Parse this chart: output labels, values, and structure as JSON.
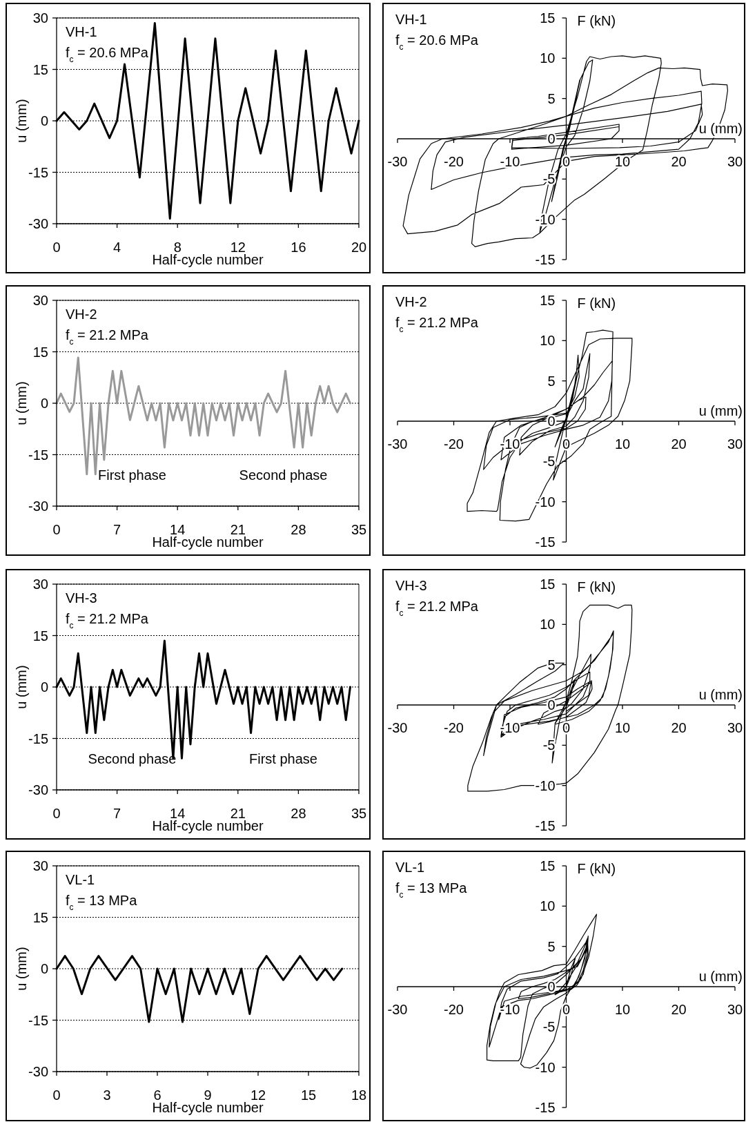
{
  "chart_data": [
    {
      "type": "line",
      "title": "VH-1",
      "subtitle": "f$_{c}$ = 20.6 MPa",
      "xlabel": "Half-cycle number",
      "ylabel": "u (mm)",
      "x": [
        0,
        0.5,
        1.5,
        2,
        2.5,
        3.5,
        4,
        4.5,
        5.5,
        6.5,
        7.5,
        8.5,
        9.5,
        10.5,
        11.5,
        12,
        12.5,
        13.5,
        14,
        14.5,
        15.5,
        16.5,
        17.5,
        18,
        18.5,
        19.5,
        20
      ],
      "series": [
        {
          "color": "#000000",
          "values": [
            0,
            2.5,
            -2.5,
            0,
            5,
            -5,
            0,
            16.5,
            -16.5,
            28.5,
            -28.5,
            24,
            -24,
            24,
            -24,
            0,
            9.5,
            -9.5,
            0,
            20.5,
            -20.5,
            20.5,
            -20.5,
            0,
            9.5,
            -9.5,
            0
          ]
        }
      ],
      "xlim": [
        0,
        20
      ],
      "xticks": [
        0,
        4,
        8,
        12,
        16,
        20
      ],
      "ylim": [
        -30,
        30
      ],
      "yticks": [
        -30,
        -15,
        0,
        15,
        30
      ],
      "grid": "y"
    },
    {
      "type": "line",
      "title": "VH-1",
      "subtitle": "f$_{c}$ = 20.6 MPa",
      "xlabel": "u (mm)",
      "ylabel": "F (kN)",
      "series": [
        {
          "color": "#000000",
          "x": [
            0,
            1.2,
            2.4,
            1.6,
            0.5,
            -0.5,
            -1.5,
            -2.6,
            -1.8,
            -0.6,
            0.5,
            2.5,
            4,
            4.7,
            4.2,
            3,
            1.5,
            0,
            -2,
            -3.5,
            -4.7,
            -4.3,
            -3,
            -1.5,
            0,
            2,
            3.6,
            4.2,
            6,
            8,
            10,
            12,
            14,
            16.8,
            16.9,
            16.5,
            15.3,
            14.4,
            13.6,
            11.1,
            6.9,
            3.2,
            1.5,
            -2,
            -4.7,
            -6,
            -9,
            -12,
            -14,
            -16.2,
            -16.8,
            -16.4,
            -15.6,
            -14.4,
            -13,
            -12,
            -8,
            -4,
            0,
            4,
            8,
            12,
            14.5,
            16.5,
            19,
            21,
            23.8,
            23.9,
            24.2,
            26,
            28.6,
            28.7,
            28.2,
            26.9,
            26,
            25.2,
            21,
            15,
            10,
            5,
            0,
            -4,
            -8,
            -11.8,
            -16.8,
            -19.3,
            -23.4,
            -28.2,
            -29,
            -28,
            -26,
            -24,
            -22,
            -15,
            -8,
            -3,
            0,
            5,
            10,
            15,
            20,
            24,
            24.1,
            23.5,
            22,
            20,
            15,
            10,
            5,
            0,
            -5,
            -10,
            -15,
            -20,
            -24,
            -23.7,
            -23,
            -21.5,
            -18,
            -10,
            0,
            10,
            18,
            24,
            24.2,
            23,
            20,
            15,
            9.5,
            0,
            -9.7,
            -9.5,
            -5,
            0,
            9.4,
            9.4,
            8,
            0,
            -9.7,
            -9.5,
            0,
            9.4
          ],
          "values": [
            0,
            3.6,
            7.3,
            4.4,
            1,
            -1.4,
            -4.6,
            -7.8,
            -5,
            -1.3,
            1.3,
            7.4,
            9.5,
            9.8,
            7.2,
            3.6,
            0.4,
            -1,
            -5.2,
            -9,
            -11.6,
            -9.4,
            -5,
            -1.4,
            0.6,
            5.2,
            9.6,
            10.2,
            9.9,
            10.2,
            10.3,
            10.1,
            10.3,
            10,
            9.4,
            7.6,
            4.2,
            1,
            -1.4,
            -2.5,
            -4.9,
            -6.9,
            -7.6,
            -9.8,
            -11.7,
            -12.3,
            -12.4,
            -12.8,
            -13,
            -13.4,
            -13,
            -10.2,
            -6.5,
            -2.6,
            -0.6,
            0,
            0.9,
            1.8,
            2.8,
            4.2,
            5.5,
            7.2,
            8.2,
            8.8,
            8.7,
            8.8,
            8.6,
            7.5,
            6.6,
            6.8,
            6.7,
            6,
            3.6,
            1,
            -0.2,
            -1.1,
            -1.5,
            -1.8,
            -2,
            -2.2,
            -2.8,
            -5.7,
            -6,
            -8,
            -9.4,
            -10.7,
            -11.5,
            -11.8,
            -10.8,
            -7,
            -2.5,
            -0.6,
            0,
            0.6,
            1.4,
            2.2,
            2.8,
            3.8,
            4.5,
            5,
            5.4,
            5.9,
            4.4,
            2,
            0,
            -1.3,
            -1.6,
            -1.9,
            -2,
            -2.3,
            -2.9,
            -3.5,
            -4.2,
            -5.1,
            -6.3,
            -4,
            -2,
            -0.4,
            0.2,
            0.9,
            1.7,
            2.6,
            3.4,
            4.3,
            3,
            1,
            -0.4,
            -0.9,
            -1.1,
            -1.2,
            -1.1,
            0,
            0.3,
            0.8,
            1.8,
            1,
            0,
            -0.8,
            -1.3,
            -0.2,
            0.5,
            1.5
          ]
        }
      ],
      "xlim": [
        -30,
        30
      ],
      "xticks": [
        -30,
        -20,
        -10,
        0,
        10,
        20,
        30
      ],
      "ylim": [
        -15,
        15
      ],
      "yticks": [
        -15,
        -10,
        -5,
        0,
        5,
        10,
        15
      ]
    },
    {
      "type": "line",
      "title": "VH-2",
      "subtitle": "f$_{c}$ = 21.2 MPa",
      "xlabel": "Half-cycle number",
      "ylabel": "u (mm)",
      "annotations": [
        "First phase",
        "Second phase"
      ],
      "x": [
        0,
        0.5,
        1.5,
        2,
        2.5,
        3.5,
        4,
        4.5,
        5,
        5.5,
        6,
        6.5,
        7,
        7.5,
        8.5,
        9.5,
        10.5,
        11,
        11.5,
        12,
        12.5,
        13,
        13.5,
        14,
        14.5,
        15,
        15.5,
        16,
        16.5,
        17,
        17.5,
        18,
        18.5,
        19,
        19.5,
        20,
        20.5,
        21,
        21.5,
        22,
        22.5,
        23,
        23.5,
        24,
        24.5,
        25.5,
        26,
        26.5,
        27.5,
        28,
        28.5,
        29,
        29.5,
        30,
        30.5,
        31,
        31.5,
        32,
        32.5,
        33.5,
        34
      ],
      "series": [
        {
          "color": "#999999",
          "values": [
            0,
            2.8,
            -2.5,
            0,
            13.3,
            -20.7,
            0,
            -20.7,
            0,
            -16.5,
            0,
            9.4,
            0,
            9.4,
            -4.9,
            5,
            -5,
            0,
            -5,
            0,
            -12.9,
            0,
            -5,
            0,
            -5,
            0,
            -9.4,
            0,
            -9.4,
            0,
            -9.4,
            0,
            -5,
            0,
            -5,
            0,
            -9.4,
            0,
            -5,
            0,
            -5,
            0,
            -9.4,
            0,
            2.8,
            -2.6,
            0,
            9.4,
            -12.9,
            0,
            -12.9,
            0,
            -9.4,
            0,
            5,
            0,
            5,
            0,
            -2.6,
            2.8,
            0
          ]
        }
      ],
      "xlim": [
        0,
        35
      ],
      "xticks": [
        0,
        7,
        14,
        21,
        28,
        35
      ],
      "ylim": [
        -30,
        30
      ],
      "yticks": [
        -30,
        -15,
        0,
        15,
        30
      ],
      "grid": "y"
    },
    {
      "type": "line",
      "title": "VH-2",
      "subtitle": "f$_{c}$ = 21.2 MPa",
      "xlabel": "u (mm)",
      "ylabel": "F (kN)",
      "series": [
        {
          "color": "#000000",
          "x": [
            0,
            1,
            2,
            1,
            0,
            -1,
            -2,
            -1,
            0,
            1.5,
            2.8,
            3.6,
            5,
            6.5,
            8.3,
            8.2,
            8.1,
            8,
            6,
            4.2,
            3,
            0.9,
            -1.5,
            -3.5,
            -5.2,
            -6.6,
            -9,
            -11.8,
            -11.7,
            -10.8,
            -9.8,
            -8.3,
            -6,
            -3,
            0,
            1.5,
            2.3,
            2.1,
            1.8,
            1.2,
            0,
            -3,
            -6,
            -8,
            -10,
            -11.4,
            -12.2,
            -12.4,
            -15,
            -17.6,
            -17.6,
            -16.6,
            -14.9,
            -13.7,
            -12.4,
            -9,
            -5,
            -2,
            0,
            2,
            4,
            6,
            9,
            11.7,
            11.7,
            11.3,
            10.4,
            9.2,
            7.5,
            5,
            2,
            0,
            -2.3,
            -1.8,
            -1,
            0,
            1.5,
            3,
            4.2,
            4,
            3,
            1.5,
            0,
            -3,
            -6,
            -8.3,
            -8,
            -6,
            -3,
            0,
            3,
            5,
            6.5,
            8.2,
            8.1,
            7.5,
            6,
            3,
            0,
            -4,
            -8,
            -11.6,
            -11,
            -8,
            -4,
            0,
            2,
            3.5,
            3.4,
            2,
            0,
            -5,
            -10,
            -13,
            -14.7,
            -14.2,
            -13,
            -10,
            -5,
            0
          ],
          "values": [
            0,
            2.8,
            5.8,
            2.5,
            0.2,
            -1.5,
            -3.2,
            -1.2,
            0.4,
            4.5,
            8,
            11,
            11.1,
            11.3,
            11.1,
            8,
            4,
            0.6,
            -0.2,
            -1,
            -2.8,
            -4.3,
            -5.5,
            -7.8,
            -10.2,
            -12.2,
            -12.4,
            -12.3,
            -10,
            -6,
            -3,
            -0.8,
            0,
            0.4,
            0.9,
            3,
            5.5,
            8.2,
            6,
            3,
            0,
            -0.8,
            -1.5,
            -2.4,
            -4.5,
            -7.5,
            -11,
            -11.2,
            -11.1,
            -11.2,
            -10.2,
            -8.9,
            -4.6,
            -1.4,
            0,
            0.4,
            0.8,
            1.8,
            3.5,
            6.5,
            9.5,
            10.2,
            10.3,
            10.3,
            9.7,
            5,
            2.6,
            0.6,
            -0.5,
            -1.5,
            -2.5,
            -3.2,
            -7.3,
            -5,
            -2.5,
            0.5,
            2.5,
            4,
            8.4,
            5.5,
            2.5,
            0.5,
            -0.6,
            -1.2,
            -2.5,
            -4.2,
            -2,
            -0.5,
            0.5,
            1.5,
            3,
            4.5,
            6,
            7.5,
            5,
            2.5,
            0.5,
            -0.5,
            -1,
            -1.8,
            -2.8,
            -4.8,
            -2,
            -0.5,
            0.4,
            1.5,
            2.5,
            3,
            1.5,
            0,
            -0.9,
            -1.6,
            -2.8,
            -4.5,
            -6,
            -3,
            -0.8,
            0.2,
            0.5,
            1
          ]
        }
      ],
      "xlim": [
        -30,
        30
      ],
      "xticks": [
        -30,
        -20,
        -10,
        0,
        10,
        20,
        30
      ],
      "ylim": [
        -15,
        15
      ],
      "yticks": [
        -15,
        -10,
        -5,
        0,
        5,
        10,
        15
      ]
    },
    {
      "type": "line",
      "title": "VH-3",
      "subtitle": "f$_{c}$ = 21.2 MPa",
      "xlabel": "Half-cycle number",
      "ylabel": "u (mm)",
      "annotations": [
        "Second phase",
        "First phase"
      ],
      "x": [
        0,
        0.5,
        1.5,
        2,
        2.5,
        3.5,
        4,
        4.5,
        5,
        5.5,
        6,
        6.5,
        7,
        7.5,
        8.5,
        9.5,
        10,
        10.5,
        11.5,
        12,
        12.5,
        13.5,
        14,
        14.5,
        15,
        15.5,
        16,
        16.5,
        17,
        17.5,
        18.5,
        19.5,
        20.5,
        21,
        21.5,
        22,
        22.5,
        23,
        23.5,
        24,
        24.5,
        25,
        25.5,
        26,
        26.5,
        27,
        27.5,
        28,
        28.5,
        29,
        29.5,
        30,
        30.5,
        31,
        31.5,
        32,
        32.5,
        33,
        33.5,
        34
      ],
      "series": [
        {
          "color": "#000000",
          "values": [
            0,
            2.5,
            -2.5,
            0,
            9.8,
            -13.4,
            0,
            -13.4,
            0,
            -9.6,
            0,
            5,
            0,
            5,
            -2.5,
            2.5,
            0,
            2.5,
            -2.5,
            0,
            13.5,
            -20.8,
            0,
            -20.8,
            0,
            -16.7,
            0,
            9.8,
            0,
            9.8,
            -4.9,
            5,
            -4.9,
            0,
            -4.9,
            0,
            -13.4,
            0,
            -4.9,
            0,
            -4.9,
            0,
            -9.6,
            0,
            -9.6,
            0,
            -9.6,
            0,
            -4.9,
            0,
            -4.9,
            0,
            -9.6,
            0,
            -4.9,
            0,
            -4.9,
            0,
            -9.6,
            0
          ]
        }
      ],
      "xlim": [
        0,
        35
      ],
      "xticks": [
        0,
        7,
        14,
        21,
        28,
        35
      ],
      "ylim": [
        -30,
        30
      ],
      "yticks": [
        -30,
        -15,
        0,
        15,
        30
      ],
      "grid": "y"
    },
    {
      "type": "line",
      "title": "VH-3",
      "subtitle": "f$_{c}$ = 21.2 MPa",
      "xlabel": "u (mm)",
      "ylabel": "F (kN)",
      "series": [
        {
          "color": "#000000",
          "x": [
            0,
            0.8,
            1.6,
            0.8,
            0,
            -1,
            -2,
            -1,
            0,
            1.5,
            3,
            4.4,
            4.3,
            3,
            1,
            0,
            -2,
            -4,
            -6,
            -8,
            -10,
            -11.6,
            -11.3,
            -10.5,
            -9,
            -6,
            -3,
            0,
            2,
            4.2,
            4.2,
            3,
            0,
            -4,
            -8,
            -11,
            -11.6,
            -11,
            -9,
            -5,
            -2,
            0,
            2,
            4,
            6,
            7.5,
            8.4,
            8.3,
            7.8,
            7,
            6,
            4,
            1,
            -2,
            -2.5,
            -2,
            -1.2,
            0,
            1,
            2,
            2.3,
            2.4,
            3,
            4.2,
            7.5,
            9.2,
            10.4,
            11.6,
            11.7,
            11.6,
            11.3,
            10,
            9.2,
            8.8,
            7.5,
            5,
            2.1,
            0,
            -1,
            -4,
            -8,
            -11,
            -14,
            -17.5,
            -17.5,
            -16.6,
            -14.9,
            -13.3,
            -12.4,
            -10.8,
            -8.3,
            -5,
            -2.5,
            -0.4,
            -2,
            -5,
            -9,
            -12.4,
            -13,
            -14,
            -14.7,
            -14.2,
            -13,
            -11,
            -6,
            0,
            3,
            5,
            6.5,
            8.3,
            8.4,
            8.2,
            7.5,
            6.5,
            5,
            2,
            -3,
            -8,
            -11.5,
            -11,
            -8,
            -4,
            0,
            2,
            4.5,
            4.6,
            3.5,
            0,
            -3,
            -5,
            -4,
            0,
            4.4,
            4,
            0
          ],
          "values": [
            0,
            1.8,
            3.2,
            1.2,
            -0.2,
            -1.3,
            -2.3,
            -1,
            0.4,
            2.5,
            4.5,
            6.3,
            4.8,
            2,
            0.2,
            -0.4,
            -0.8,
            -1.5,
            -2,
            -2.6,
            -3.2,
            -4,
            -2.5,
            -0.8,
            0,
            0.6,
            1.2,
            2.2,
            3.2,
            4.1,
            3,
            1,
            -1.1,
            -1.8,
            -2.3,
            -3.4,
            -3.8,
            -1.5,
            -0.4,
            0.3,
            1,
            2,
            3.5,
            4.8,
            6.5,
            7.8,
            9.2,
            7,
            4.5,
            2,
            0.5,
            -0.8,
            -1.8,
            -2.4,
            -7.2,
            -5,
            -2,
            0.5,
            3,
            6,
            8.5,
            10.4,
            11.6,
            12.4,
            12.4,
            12,
            12.4,
            12.4,
            11.8,
            9.5,
            6.3,
            2.3,
            0,
            -0.6,
            -3,
            -5.9,
            -8.5,
            -9.7,
            -9.8,
            -10,
            -10,
            -10.5,
            -10.7,
            -10.7,
            -10,
            -7.6,
            -4.7,
            -1.5,
            0,
            1.1,
            2.8,
            4.6,
            5.2,
            5.2,
            4.2,
            3,
            1.3,
            0,
            -1.5,
            -4,
            -6.3,
            -4,
            -1,
            0.5,
            1.8,
            3,
            4.2,
            5.5,
            7,
            8.8,
            9,
            6.5,
            3.5,
            1,
            0,
            -1.2,
            -2,
            -2.5,
            -3.8,
            -1.2,
            -0.3,
            0.3,
            1,
            2,
            3,
            2,
            0.3,
            -1.5,
            -2.1,
            -2.4,
            -1,
            0.5,
            2.8,
            1.2,
            -0.8
          ]
        }
      ],
      "xlim": [
        -30,
        30
      ],
      "xticks": [
        -30,
        -20,
        -10,
        0,
        10,
        20,
        30
      ],
      "ylim": [
        -15,
        15
      ],
      "yticks": [
        -15,
        -10,
        -5,
        0,
        5,
        10,
        15
      ]
    },
    {
      "type": "line",
      "title": "VL-1",
      "subtitle": "f$_{c}$ = 13 MPa",
      "xlabel": "Half-cycle number",
      "ylabel": "u (mm)",
      "x": [
        0,
        0.5,
        1,
        1.5,
        2,
        2.5,
        3.5,
        4.5,
        5,
        5.5,
        6,
        6.5,
        7,
        7.5,
        8,
        8.5,
        9,
        9.5,
        10,
        10.5,
        11,
        11.5,
        12,
        12.5,
        13.5,
        14.5,
        15.5,
        16,
        16.5,
        17
      ],
      "series": [
        {
          "color": "#000000",
          "values": [
            0,
            3.7,
            0,
            -7.4,
            0,
            3.7,
            -3.3,
            3.7,
            0,
            -15.5,
            0,
            -7.4,
            0,
            -15.5,
            0,
            -7.4,
            0,
            -7.4,
            0,
            -7.4,
            0,
            -13.2,
            0,
            3.7,
            -3.3,
            3.7,
            -3.3,
            0,
            -3.3,
            0
          ]
        }
      ],
      "xlim": [
        0,
        18
      ],
      "xticks": [
        0,
        3,
        6,
        9,
        12,
        15,
        18
      ],
      "ylim": [
        -30,
        30
      ],
      "yticks": [
        -30,
        -15,
        0,
        15,
        30
      ],
      "grid": "y"
    },
    {
      "type": "line",
      "title": "VL-1",
      "subtitle": "f$_{c}$ = 13 MPa",
      "xlabel": "u (mm)",
      "ylabel": "F (kN)",
      "series": [
        {
          "color": "#000000",
          "x": [
            0,
            0.8,
            1.6,
            0.8,
            0,
            -1,
            -2,
            -1,
            0,
            1.5,
            2.5,
            3.5,
            3.9,
            3.6,
            2.6,
            1.6,
            0,
            -2,
            -4,
            -6,
            -8.5,
            -8,
            -6,
            -4,
            -2,
            0,
            1.5,
            2.8,
            3.5,
            3.7,
            3.3,
            2.2,
            1,
            -2,
            -5,
            -8,
            -11,
            -12,
            -11.5,
            -10.5,
            -8,
            -4,
            -1.5,
            0,
            1.5,
            2.5,
            3.5,
            3.9,
            3.7,
            3,
            2,
            0,
            -2,
            -4,
            -5.5,
            -6.5,
            -7.6,
            -8.1,
            -7.5,
            -6.4,
            -5.2,
            -3.5,
            -2.2,
            -1.4,
            -1,
            0,
            0.7,
            1.9,
            2.7,
            4,
            4.8,
            5.4,
            4.5,
            3,
            1.5,
            0,
            -2.2,
            -4.3,
            -6.8,
            -8.5,
            -11,
            -11.8,
            -12.7,
            -13.5,
            -14.1,
            -14.1,
            -13,
            -10,
            -8.5,
            -8.1,
            -7.7,
            -6.8,
            -6,
            -4,
            -2,
            0,
            2,
            3.8,
            3.9,
            3,
            1,
            -3,
            -6,
            -8.5,
            -11.5,
            -13.7,
            -13.5,
            -12.5,
            -11,
            -8,
            -4,
            0,
            2,
            3.5
          ],
          "values": [
            0,
            2.2,
            3.5,
            1.3,
            0,
            -0.6,
            -1,
            -0.3,
            0.5,
            2.2,
            3.2,
            4.8,
            6.3,
            4.5,
            2,
            0.3,
            -0.4,
            -0.7,
            -1,
            -1.3,
            -1.5,
            -0.6,
            0,
            0.4,
            0.9,
            1.8,
            2.5,
            3.6,
            4.6,
            5.5,
            3.5,
            1.2,
            -0.2,
            -0.6,
            -0.9,
            -1.2,
            -1.8,
            -4.1,
            -2,
            -0.3,
            0.7,
            1.1,
            1.6,
            2.5,
            3.5,
            4.5,
            5.5,
            6.2,
            4,
            2,
            0.5,
            -0.8,
            -1.6,
            -2.5,
            -4,
            -6,
            -8.5,
            -9.6,
            -10,
            -10.1,
            -9.7,
            -8.2,
            -6.7,
            -4.7,
            -3,
            -1.2,
            -0.4,
            0.2,
            1.1,
            3.7,
            6.3,
            9,
            8,
            6.3,
            4.5,
            2.8,
            2.6,
            2,
            1.7,
            1.5,
            0.5,
            -0.6,
            -2.4,
            -4.7,
            -7.3,
            -9.1,
            -9.2,
            -9.2,
            -9.2,
            -8.8,
            -5.9,
            -2.4,
            -0.9,
            -0.2,
            0.3,
            1.5,
            3,
            5.8,
            4,
            1.5,
            -0.3,
            -1,
            -1.5,
            -1.7,
            -2.5,
            -7.5,
            -5,
            -2,
            0,
            0.9,
            1.3,
            2,
            2.5,
            4.5
          ]
        }
      ],
      "xlim": [
        -30,
        30
      ],
      "xticks": [
        -30,
        -20,
        -10,
        0,
        10,
        20,
        30
      ],
      "ylim": [
        -15,
        15
      ],
      "yticks": [
        -15,
        -10,
        -5,
        0,
        5,
        10,
        15
      ]
    }
  ]
}
